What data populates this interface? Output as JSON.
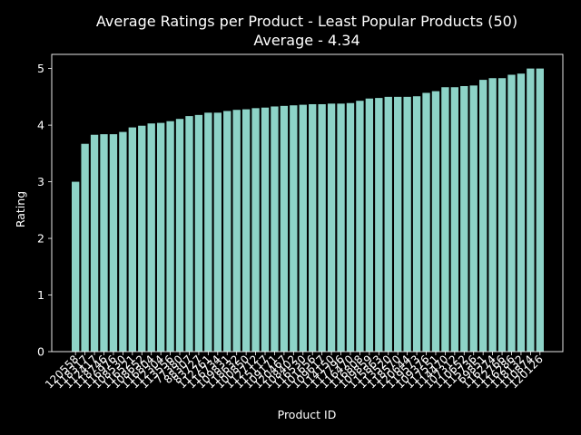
{
  "chart_data": {
    "type": "bar",
    "title": "Average Ratings per Product - Least Popular Products (50)",
    "subtitle": "Average - 4.34",
    "xlabel": "Product ID",
    "ylabel": "Rating",
    "ylim": [
      0,
      5.25
    ],
    "yticks": [
      "0",
      "1",
      "2",
      "3",
      "4",
      "5"
    ],
    "bar_color": "#8dd3c7",
    "categories": [
      "120558",
      "118317",
      "112417",
      "118746",
      "116976",
      "108530",
      "116521",
      "108652",
      "116804",
      "112304",
      "113556",
      "77380",
      "88307",
      "83727",
      "112761",
      "116734",
      "109831",
      "118632",
      "100850",
      "112712",
      "115117",
      "109171",
      "120467",
      "108402",
      "116530",
      "101656",
      "109617",
      "114150",
      "117796",
      "116470",
      "116808",
      "109859",
      "115863",
      "113520",
      "118570",
      "120644",
      "119573",
      "109376",
      "117551",
      "114470",
      "107312",
      "110652",
      "115736",
      "69851",
      "116274",
      "112766",
      "116286",
      "118132",
      "110874",
      "120126"
    ],
    "values": [
      3.0,
      3.67,
      3.83,
      3.84,
      3.84,
      3.88,
      3.96,
      3.99,
      4.03,
      4.04,
      4.07,
      4.11,
      4.16,
      4.18,
      4.22,
      4.22,
      4.25,
      4.27,
      4.28,
      4.3,
      4.31,
      4.33,
      4.34,
      4.35,
      4.36,
      4.37,
      4.37,
      4.38,
      4.38,
      4.39,
      4.43,
      4.47,
      4.48,
      4.5,
      4.5,
      4.5,
      4.51,
      4.57,
      4.6,
      4.67,
      4.67,
      4.69,
      4.7,
      4.8,
      4.83,
      4.83,
      4.89,
      4.91,
      5.0,
      5.0
    ]
  }
}
